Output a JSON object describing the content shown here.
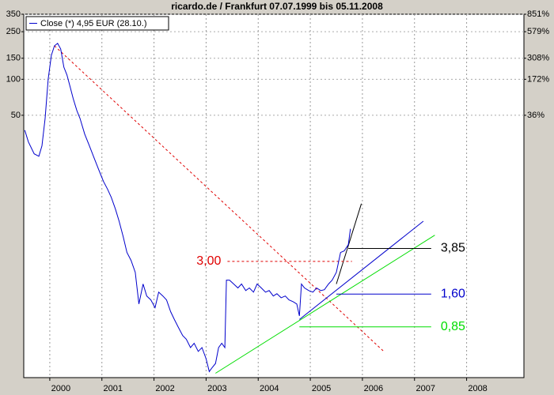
{
  "chart_data": {
    "type": "line",
    "title": "ricardo.de / Frankfurt 07.07.1999 bis 05.11.2008",
    "log_scale": true,
    "grid": true,
    "legend": "top-left",
    "xlim": [
      1999.5,
      2009.1
    ],
    "xticks": [
      2000,
      2001,
      2002,
      2003,
      2004,
      2005,
      2006,
      2007,
      2008
    ],
    "ylim": [
      0.32,
      350
    ],
    "yticks": [
      350,
      250,
      150,
      100,
      50
    ],
    "y2lim": [
      0.32,
      350
    ],
    "y2ticks": [
      {
        "value": 350,
        "label": "851%"
      },
      {
        "value": 250,
        "label": "579%"
      },
      {
        "value": 150,
        "label": "308%"
      },
      {
        "value": 100,
        "label": "172%"
      },
      {
        "value": 50,
        "label": "36%"
      }
    ],
    "x": [
      1999.52,
      1999.59,
      1999.7,
      1999.79,
      1999.85,
      1999.91,
      1999.97,
      2000.03,
      2000.09,
      2000.15,
      2000.21,
      2000.27,
      2000.33,
      2000.39,
      2000.45,
      2000.52,
      2000.58,
      2000.67,
      2000.76,
      2000.85,
      2000.94,
      2001.03,
      2001.11,
      2001.18,
      2001.26,
      2001.33,
      2001.41,
      2001.48,
      2001.56,
      2001.64,
      2001.71,
      2001.79,
      2001.86,
      2001.94,
      2002.02,
      2002.09,
      2002.17,
      2002.24,
      2002.32,
      2002.39,
      2002.47,
      2002.55,
      2002.62,
      2002.7,
      2002.77,
      2002.85,
      2002.92,
      2003.0,
      2003.06,
      2003.12,
      2003.18,
      2003.24,
      2003.3,
      2003.36,
      2003.39,
      2003.45,
      2003.53,
      2003.61,
      2003.68,
      2003.76,
      2003.83,
      2003.91,
      2003.98,
      2004.06,
      2004.14,
      2004.21,
      2004.29,
      2004.36,
      2004.44,
      2004.52,
      2004.59,
      2004.67,
      2004.74,
      2004.79,
      2004.83,
      2004.89,
      2004.97,
      2005.05,
      2005.12,
      2005.2,
      2005.27,
      2005.35,
      2005.42,
      2005.5,
      2005.58,
      2005.65,
      2005.73,
      2005.77
    ],
    "series": [
      {
        "name": "Close (*) 4,95 EUR (28.10.)",
        "color": "#0000cc",
        "values": [
          37.5,
          29.9,
          23.8,
          22.7,
          27.7,
          47.1,
          100.7,
          158.8,
          190.6,
          199.6,
          179.3,
          126.4,
          108.6,
          86.5,
          68.8,
          54.8,
          47.1,
          34.8,
          27.7,
          22.0,
          17.5,
          14.0,
          12.0,
          10.3,
          8.2,
          6.5,
          4.82,
          3.56,
          3.06,
          2.43,
          1.32,
          1.94,
          1.54,
          1.43,
          1.23,
          1.66,
          1.54,
          1.43,
          1.14,
          0.98,
          0.84,
          0.72,
          0.67,
          0.57,
          0.62,
          0.53,
          0.57,
          0.46,
          0.36,
          0.39,
          0.42,
          0.57,
          0.62,
          0.57,
          2.09,
          2.09,
          1.94,
          1.8,
          1.94,
          1.71,
          1.8,
          1.66,
          1.94,
          1.8,
          1.66,
          1.71,
          1.54,
          1.61,
          1.49,
          1.54,
          1.43,
          1.38,
          1.32,
          1.05,
          1.94,
          1.8,
          1.71,
          1.66,
          1.8,
          1.71,
          1.74,
          1.94,
          2.09,
          2.43,
          3.56,
          3.67,
          4.14,
          5.61
        ]
      }
    ],
    "trendlines": [
      {
        "color": "#e00000",
        "dashed": true,
        "x": [
          2000.09,
          2006.41
        ],
        "values": [
          190.6,
          0.53
        ]
      },
      {
        "color": "#00dd00",
        "dashed": false,
        "x": [
          2003.18,
          2007.39
        ],
        "values": [
          0.348,
          4.97
        ]
      },
      {
        "color": "#0000cc",
        "dashed": false,
        "x": [
          2004.79,
          2007.17
        ],
        "values": [
          0.98,
          6.5
        ]
      },
      {
        "color": "#000000",
        "dashed": false,
        "x": [
          2005.5,
          2005.98
        ],
        "values": [
          1.94,
          9.12
        ]
      }
    ],
    "levels": [
      {
        "value": 3,
        "label": "3,00",
        "color": "#e00000",
        "dashed": true,
        "side": "left",
        "x": [
          2003.41,
          2005.8
        ]
      },
      {
        "value": 3.85,
        "label": "3,85",
        "color": "#000000",
        "dashed": false,
        "side": "right",
        "x": [
          2005.73,
          2007.32
        ]
      },
      {
        "value": 1.6,
        "label": "1,60",
        "color": "#0000cc",
        "dashed": false,
        "side": "right",
        "x": [
          2005.5,
          2007.32
        ]
      },
      {
        "value": 0.85,
        "label": "0,85",
        "color": "#00dd00",
        "dashed": false,
        "side": "right",
        "x": [
          2004.79,
          2007.32
        ]
      }
    ]
  }
}
